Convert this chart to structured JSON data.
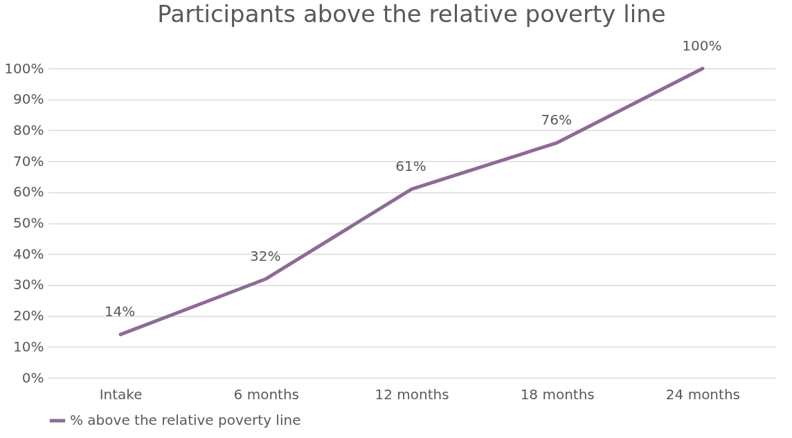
{
  "chart_data": {
    "type": "line",
    "title": "Participants above the relative poverty line",
    "categories": [
      "Intake",
      "6 months",
      "12 months",
      "18 months",
      "24 months"
    ],
    "series": [
      {
        "name": "% above the relative poverty line",
        "color": "#8c6b94",
        "values": [
          14,
          32,
          61,
          76,
          100
        ],
        "value_labels": [
          "14%",
          "32%",
          "61%",
          "76%",
          "100%"
        ]
      }
    ],
    "ylim": [
      0,
      100
    ],
    "yticks": [
      {
        "value": 0,
        "label": "0%"
      },
      {
        "value": 10,
        "label": "10%"
      },
      {
        "value": 20,
        "label": "20%"
      },
      {
        "value": 30,
        "label": "30%"
      },
      {
        "value": 40,
        "label": "40%"
      },
      {
        "value": 50,
        "label": "50%"
      },
      {
        "value": 60,
        "label": "60%"
      },
      {
        "value": 70,
        "label": "70%"
      },
      {
        "value": 80,
        "label": "80%"
      },
      {
        "value": 90,
        "label": "90%"
      },
      {
        "value": 100,
        "label": "100%"
      }
    ],
    "grid": "y",
    "legend": "bottom",
    "marker": "none",
    "line_style": "solid"
  }
}
